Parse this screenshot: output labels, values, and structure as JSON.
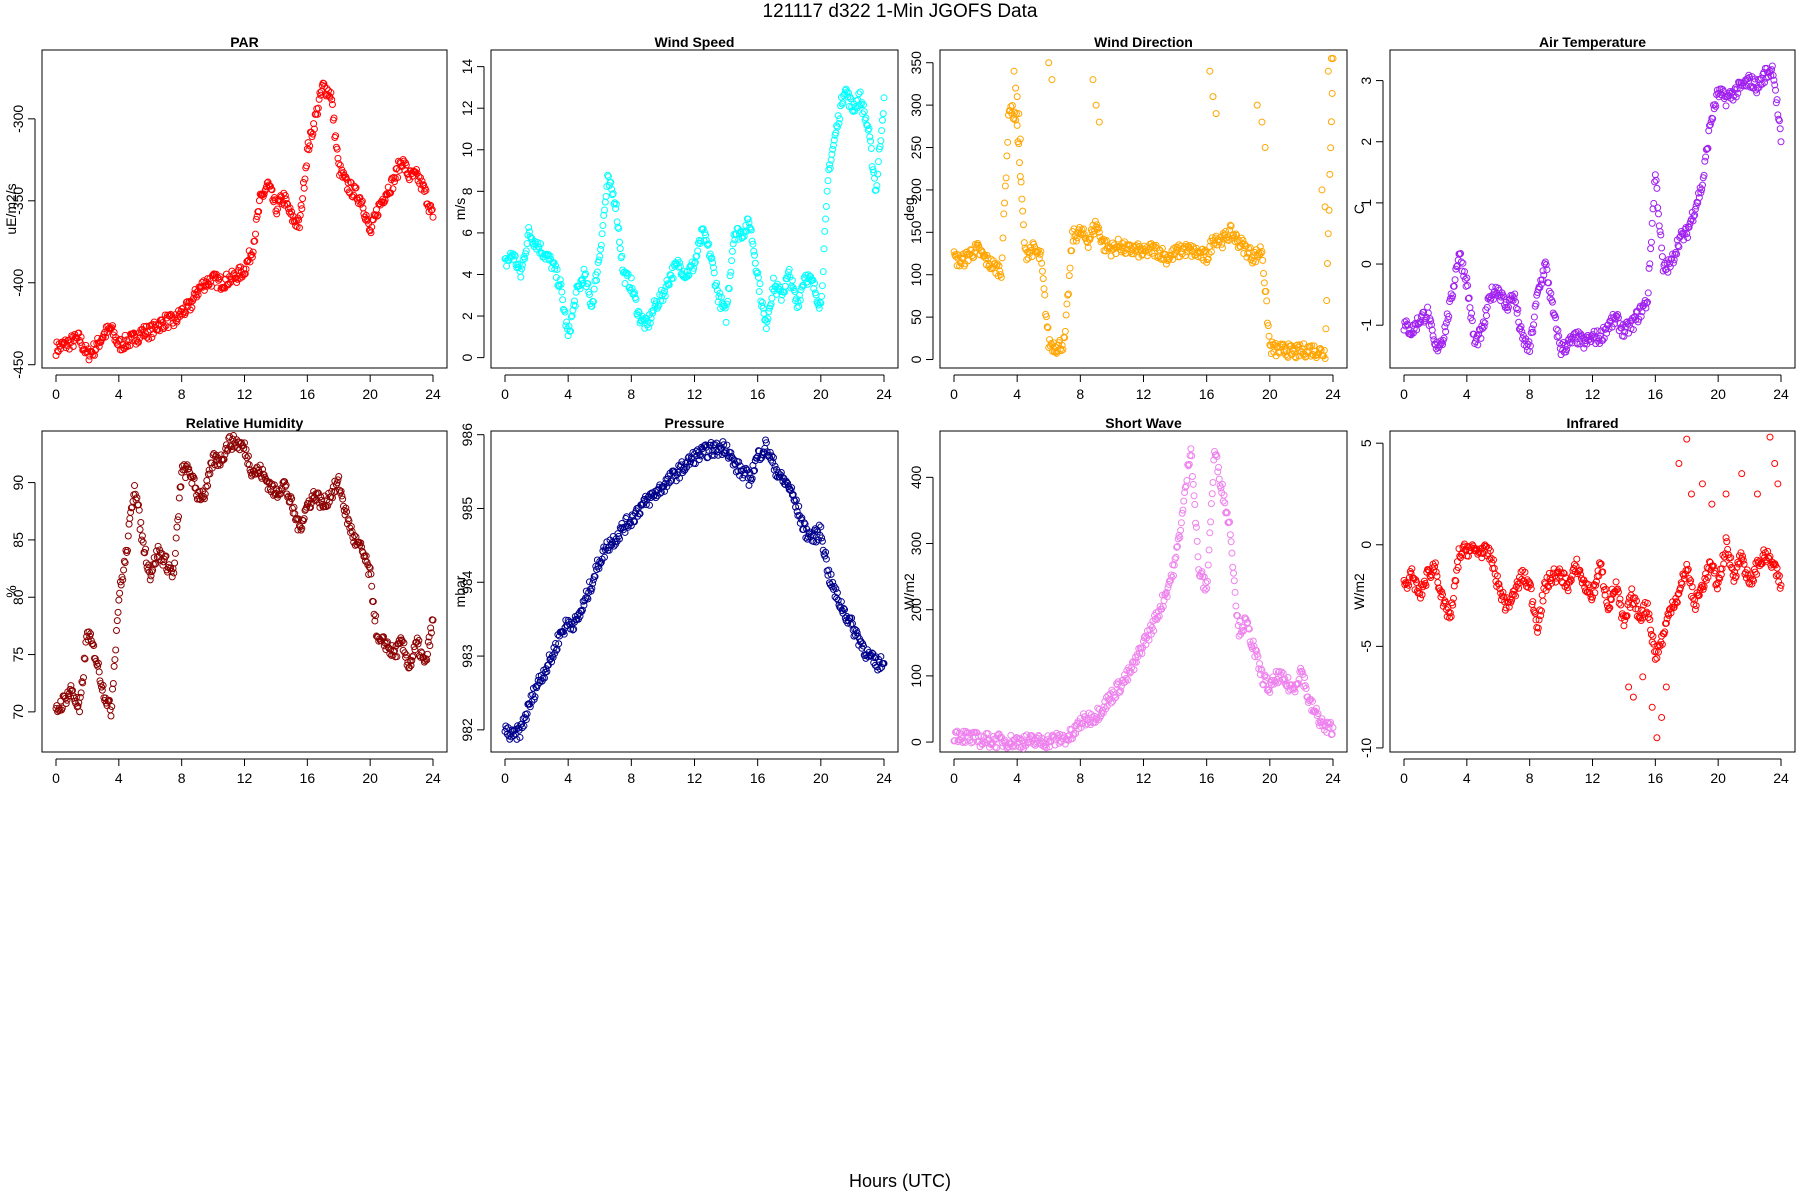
{
  "figure": {
    "title": "121117   d322   1-Min  JGOFS Data",
    "xlabel": "Hours (UTC)"
  },
  "chart_data": [
    {
      "type": "scatter",
      "title": "PAR",
      "ylabel": "uE/m2/s",
      "color": "#ff0000",
      "xlim": [
        0,
        24
      ],
      "ylim": [
        -452,
        -258
      ],
      "xticks": [
        0,
        4,
        8,
        12,
        16,
        20,
        24
      ],
      "yticks": [
        -450,
        -400,
        -350,
        -300
      ],
      "series": [
        {
          "x": [
            0,
            0.5,
            1,
            1.5,
            2,
            2.5,
            3,
            3.5,
            4,
            4.5,
            5,
            5.5,
            6,
            6.5,
            7,
            7.5,
            8,
            8.5,
            9,
            9.5,
            10,
            10.5,
            11,
            11.5,
            12,
            12.5,
            13,
            13.5,
            14,
            14.5,
            15,
            15.5,
            16,
            16.5,
            17,
            17.5,
            18,
            18.5,
            19,
            19.5,
            20,
            20.5,
            21,
            21.5,
            22,
            22.5,
            23,
            23.5,
            24
          ],
          "y": [
            -440,
            -438,
            -436,
            -434,
            -444,
            -440,
            -432,
            -428,
            -438,
            -436,
            -434,
            -430,
            -430,
            -426,
            -423,
            -424,
            -418,
            -415,
            -405,
            -400,
            -398,
            -400,
            -398,
            -396,
            -392,
            -380,
            -350,
            -340,
            -355,
            -348,
            -360,
            -365,
            -320,
            -300,
            -280,
            -285,
            -330,
            -340,
            -345,
            -350,
            -370,
            -355,
            -345,
            -338,
            -325,
            -335,
            -335,
            -345,
            -360
          ]
        }
      ]
    },
    {
      "type": "scatter",
      "title": "Wind Speed",
      "ylabel": "m/s",
      "color": "#00ffff",
      "xlim": [
        0,
        24
      ],
      "ylim": [
        -0.5,
        14.8
      ],
      "xticks": [
        0,
        4,
        8,
        12,
        16,
        20,
        24
      ],
      "yticks": [
        0,
        2,
        4,
        6,
        8,
        10,
        12,
        14
      ],
      "series": [
        {
          "x": [
            0,
            0.5,
            1,
            1.5,
            2,
            2.5,
            3,
            3.5,
            4,
            4.5,
            5,
            5.5,
            6,
            6.5,
            7,
            7.5,
            8,
            8.5,
            9,
            9.5,
            10,
            10.5,
            11,
            11.5,
            12,
            12.5,
            13,
            13.5,
            14,
            14.5,
            15,
            15.5,
            16,
            16.5,
            17,
            17.5,
            18,
            18.5,
            19,
            19.5,
            20,
            20.5,
            21,
            21.5,
            22,
            22.5,
            23,
            23.5,
            24
          ],
          "y": [
            4.5,
            5,
            4,
            6,
            5.5,
            5,
            4.5,
            3.5,
            1,
            3,
            4,
            2.5,
            5,
            8.5,
            7.5,
            4,
            3.5,
            2,
            1.5,
            2.5,
            3,
            4,
            4.5,
            4,
            4.5,
            6,
            5,
            3,
            2,
            6,
            6,
            6.5,
            4,
            1.5,
            3.5,
            3,
            4,
            2.5,
            4,
            3.5,
            2.5,
            9,
            11,
            13,
            12,
            12.5,
            11,
            8,
            12.5
          ]
        }
      ]
    },
    {
      "type": "scatter",
      "title": "Wind Direction",
      "ylabel": "deg",
      "color": "#ffa500",
      "xlim": [
        0,
        24
      ],
      "ylim": [
        -10,
        365
      ],
      "xticks": [
        0,
        4,
        8,
        12,
        16,
        20,
        24
      ],
      "yticks": [
        0,
        50,
        100,
        150,
        200,
        250,
        300,
        350
      ],
      "series": [
        {
          "x": [
            0,
            0.5,
            1,
            1.5,
            2,
            2.5,
            3,
            3.5,
            4,
            4.5,
            5,
            5.5,
            6,
            6.5,
            7,
            7.5,
            8,
            8.5,
            9,
            9.5,
            10,
            10.5,
            11,
            11.5,
            12,
            12.5,
            13,
            13.5,
            14,
            14.5,
            15,
            15.5,
            16,
            16.5,
            17,
            17.5,
            18,
            18.5,
            19,
            19.5,
            20,
            20.5,
            21,
            21.5,
            22,
            22.5,
            23,
            23.5,
            24
          ],
          "y": [
            120,
            115,
            125,
            130,
            118,
            110,
            105,
            300,
            280,
            125,
            130,
            120,
            20,
            15,
            20,
            145,
            150,
            140,
            160,
            135,
            130,
            135,
            128,
            130,
            125,
            130,
            128,
            120,
            125,
            130,
            128,
            125,
            120,
            145,
            140,
            150,
            140,
            130,
            120,
            130,
            15,
            10,
            12,
            8,
            10,
            12,
            10,
            8,
            355
          ]
        },
        {
          "x": [
            3.8,
            3.9,
            4,
            4.1,
            4.2,
            6,
            6.2,
            8.8,
            9,
            9.2,
            16.2,
            16.4,
            16.6,
            19.2,
            19.5,
            19.7,
            23.3,
            23.5,
            23.7,
            23.9
          ],
          "y": [
            340,
            320,
            310,
            290,
            260,
            350,
            330,
            330,
            300,
            280,
            340,
            310,
            290,
            300,
            280,
            250,
            200,
            180,
            340,
            355
          ]
        }
      ]
    },
    {
      "type": "scatter",
      "title": "Air Temperature",
      "ylabel": "C",
      "color": "#a020f0",
      "xlim": [
        0,
        24
      ],
      "ylim": [
        -1.7,
        3.5
      ],
      "xticks": [
        0,
        4,
        8,
        12,
        16,
        20,
        24
      ],
      "yticks": [
        -1,
        0,
        1,
        2,
        3
      ],
      "series": [
        {
          "x": [
            0,
            0.5,
            1,
            1.5,
            2,
            2.5,
            3,
            3.5,
            4,
            4.5,
            5,
            5.5,
            6,
            6.5,
            7,
            7.5,
            8,
            8.5,
            9,
            9.5,
            10,
            10.5,
            11,
            11.5,
            12,
            12.5,
            13,
            13.5,
            14,
            14.5,
            15,
            15.5,
            16,
            16.5,
            17,
            17.5,
            18,
            18.5,
            19,
            19.5,
            20,
            20.5,
            21,
            21.5,
            22,
            22.5,
            23,
            23.5,
            24
          ],
          "y": [
            -1,
            -1.1,
            -0.9,
            -0.8,
            -1.4,
            -1.2,
            -0.6,
            0.2,
            -0.3,
            -1.3,
            -1.1,
            -0.5,
            -0.4,
            -0.7,
            -0.5,
            -1.2,
            -1.4,
            -0.5,
            0,
            -0.8,
            -1.4,
            -1.3,
            -1.2,
            -1.3,
            -1.2,
            -1.2,
            -1,
            -0.9,
            -1.1,
            -1,
            -0.8,
            -0.6,
            1.5,
            -0.1,
            0,
            0.4,
            0.5,
            0.9,
            1.3,
            2.3,
            2.8,
            2.7,
            2.8,
            2.9,
            3,
            2.9,
            3.1,
            3.2,
            2
          ]
        }
      ]
    },
    {
      "type": "scatter",
      "title": "Relative Humidity",
      "ylabel": "%",
      "color": "#8b0000",
      "xlim": [
        0,
        24
      ],
      "ylim": [
        66.5,
        94.5
      ],
      "xticks": [
        0,
        4,
        8,
        12,
        16,
        20,
        24
      ],
      "yticks": [
        70,
        75,
        80,
        85,
        90
      ],
      "series": [
        {
          "x": [
            0,
            0.5,
            1,
            1.5,
            2,
            2.5,
            3,
            3.5,
            4,
            4.5,
            5,
            5.5,
            6,
            6.5,
            7,
            7.5,
            8,
            8.5,
            9,
            9.5,
            10,
            10.5,
            11,
            11.5,
            12,
            12.5,
            13,
            13.5,
            14,
            14.5,
            15,
            15.5,
            16,
            16.5,
            17,
            17.5,
            18,
            18.5,
            19,
            19.5,
            20,
            20.5,
            21,
            21.5,
            22,
            22.5,
            23,
            23.5,
            24
          ],
          "y": [
            70,
            71,
            72,
            70,
            77,
            75,
            72,
            70,
            80,
            84,
            90,
            85,
            82,
            84,
            83,
            82,
            91,
            91,
            89,
            89,
            92,
            92,
            93.5,
            93.5,
            93,
            91,
            91,
            90,
            89,
            90,
            88,
            86,
            88,
            89,
            88,
            89,
            90,
            87,
            85,
            84,
            82,
            76,
            76,
            75,
            76,
            74,
            76,
            74,
            78
          ]
        }
      ]
    },
    {
      "type": "scatter",
      "title": "Pressure",
      "ylabel": "mbar",
      "color": "#00008b",
      "xlim": [
        0,
        24
      ],
      "ylim": [
        981.7,
        986.05
      ],
      "xticks": [
        0,
        4,
        8,
        12,
        16,
        20,
        24
      ],
      "yticks": [
        982,
        983,
        984,
        985,
        986
      ],
      "series": [
        {
          "x": [
            0,
            0.5,
            1,
            1.5,
            2,
            2.5,
            3,
            3.5,
            4,
            4.5,
            5,
            5.5,
            6,
            6.5,
            7,
            7.5,
            8,
            8.5,
            9,
            9.5,
            10,
            10.5,
            11,
            11.5,
            12,
            12.5,
            13,
            13.5,
            14,
            14.5,
            15,
            15.5,
            16,
            16.5,
            17,
            17.5,
            18,
            18.5,
            19,
            19.5,
            20,
            20.5,
            21,
            21.5,
            22,
            22.5,
            23,
            23.5,
            24
          ],
          "y": [
            982,
            981.9,
            982,
            982.3,
            982.6,
            982.8,
            983,
            983.3,
            983.45,
            983.45,
            983.7,
            984,
            984.3,
            984.5,
            984.6,
            984.75,
            984.85,
            985,
            985.1,
            985.2,
            985.3,
            985.4,
            985.5,
            985.6,
            985.7,
            985.75,
            985.8,
            985.8,
            985.85,
            985.6,
            985.5,
            985.4,
            985.7,
            985.85,
            985.6,
            985.4,
            985.3,
            985,
            984.7,
            984.6,
            984.7,
            984.1,
            983.8,
            983.6,
            983.4,
            983.2,
            983,
            982.9,
            982.9
          ]
        }
      ]
    },
    {
      "type": "scatter",
      "title": "Short Wave",
      "ylabel": "W/m2",
      "color": "#ee82ee",
      "xlim": [
        0,
        24
      ],
      "ylim": [
        -15,
        470
      ],
      "xticks": [
        0,
        4,
        8,
        12,
        16,
        20,
        24
      ],
      "yticks": [
        0,
        100,
        200,
        300,
        400
      ],
      "series": [
        {
          "x": [
            0,
            0.5,
            1,
            1.5,
            2,
            2.5,
            3,
            3.5,
            4,
            4.5,
            5,
            5.5,
            6,
            6.5,
            7,
            7.5,
            8,
            8.5,
            9,
            9.5,
            10,
            10.5,
            11,
            11.5,
            12,
            12.5,
            13,
            13.5,
            14,
            14.5,
            15,
            15.5,
            16,
            16.5,
            17,
            17.5,
            18,
            18.5,
            19,
            19.5,
            20,
            20.5,
            21,
            21.5,
            22,
            22.5,
            23,
            23.5,
            24
          ],
          "y": [
            12,
            10,
            6,
            4,
            3,
            2,
            2,
            1,
            1,
            1,
            1,
            1,
            2,
            4,
            6,
            10,
            30,
            35,
            40,
            55,
            70,
            85,
            100,
            120,
            150,
            170,
            200,
            230,
            270,
            350,
            450,
            260,
            230,
            440,
            380,
            320,
            170,
            180,
            140,
            100,
            80,
            100,
            90,
            80,
            110,
            60,
            40,
            20,
            22
          ]
        }
      ]
    },
    {
      "type": "scatter",
      "title": "Infrared",
      "ylabel": "W/m2",
      "color": "#ff0000",
      "xlim": [
        0,
        24
      ],
      "ylim": [
        -10.2,
        5.6
      ],
      "xticks": [
        0,
        4,
        8,
        12,
        16,
        20,
        24
      ],
      "yticks": [
        -10,
        -5,
        0,
        5
      ],
      "series": [
        {
          "x": [
            0,
            0.5,
            1,
            1.5,
            2,
            2.5,
            3,
            3.5,
            4,
            4.5,
            5,
            5.5,
            6,
            6.5,
            7,
            7.5,
            8,
            8.5,
            9,
            9.5,
            10,
            10.5,
            11,
            11.5,
            12,
            12.5,
            13,
            13.5,
            14,
            14.5,
            15,
            15.5,
            16,
            16.5,
            17,
            17.5,
            18,
            18.5,
            19,
            19.5,
            20,
            20.5,
            21,
            21.5,
            22,
            22.5,
            23,
            23.5,
            24
          ],
          "y": [
            -2,
            -1.5,
            -2.5,
            -1.5,
            -1,
            -3,
            -3.5,
            -0.5,
            -0.2,
            -0.3,
            -0.3,
            -0.5,
            -2,
            -3,
            -2.5,
            -1.5,
            -2,
            -4,
            -2,
            -1.5,
            -1.5,
            -2,
            -1,
            -2,
            -2.5,
            -1,
            -3,
            -2,
            -4,
            -2.5,
            -3.5,
            -3,
            -5.5,
            -4.5,
            -3,
            -2.5,
            -1,
            -3,
            -2,
            -1,
            -2,
            0,
            -1.5,
            -0.5,
            -2,
            -1,
            -0.5,
            -1,
            -2
          ]
        },
        {
          "x": [
            14.3,
            14.6,
            15.2,
            15.8,
            16.1,
            16.4,
            16.7,
            17.5,
            18,
            18.3,
            19,
            19.6,
            20.5,
            21.5,
            22.5,
            23.3,
            23.6,
            23.8
          ],
          "y": [
            -7,
            -7.5,
            -6.5,
            -8,
            -9.5,
            -8.5,
            -7,
            4,
            5.2,
            2.5,
            3,
            2,
            2.5,
            3.5,
            2.5,
            5.3,
            4,
            3
          ]
        }
      ]
    }
  ]
}
